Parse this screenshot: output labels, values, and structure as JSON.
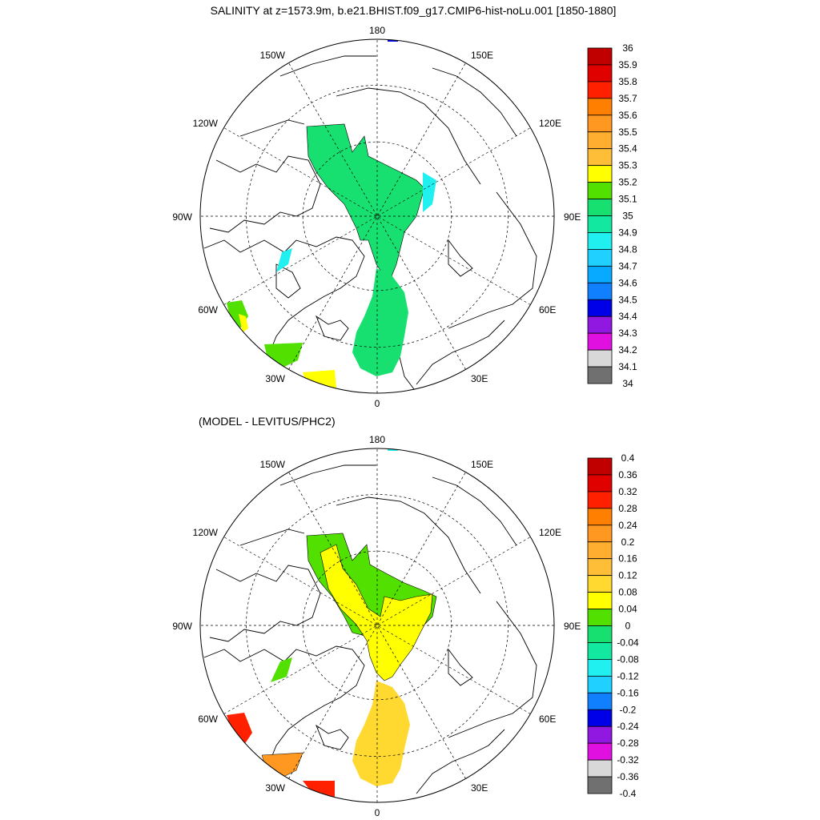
{
  "figure": {
    "title": "SALINITY at z=1573.9m, b.e21.BHIST.f09_g17.CMIP6-hist-noLu.001 [1850-1880]",
    "subtitle": "(MODEL - LEVITUS/PHC2)"
  },
  "longitude_labels": {
    "top": "180",
    "bottom": "0",
    "left": "90W",
    "right": "90E",
    "upper_left": "150W",
    "upper_right": "150E",
    "mid_upper_left": "120W",
    "mid_upper_right": "120E",
    "lower_left": "60W",
    "lower_right": "60E",
    "bottom_left": "30W",
    "bottom_right": "30E"
  },
  "panel1": {
    "colorbar_labels": [
      "36",
      "35.9",
      "35.8",
      "35.7",
      "35.6",
      "35.5",
      "35.4",
      "35.3",
      "35.2",
      "35.1",
      "35",
      "34.9",
      "34.8",
      "34.7",
      "34.6",
      "34.5",
      "34.4",
      "34.3",
      "34.2",
      "34.1",
      "34"
    ],
    "colorbar_colors": [
      "#c00000",
      "#e00000",
      "#ff2000",
      "#ff8000",
      "#ff9820",
      "#ffae30",
      "#ffbe38",
      "#ffff00",
      "#52e000",
      "#18e070",
      "#12e8a0",
      "#20f0f0",
      "#20d0ff",
      "#08aaff",
      "#1080ff",
      "#0000e8",
      "#9018e0",
      "#e010e0",
      "#d8d8d8",
      "#707070"
    ]
  },
  "panel2": {
    "colorbar_labels": [
      "0.4",
      "0.36",
      "0.32",
      "0.28",
      "0.24",
      "0.2",
      "0.16",
      "0.12",
      "0.08",
      "0.04",
      "0",
      "-0.04",
      "-0.08",
      "-0.12",
      "-0.16",
      "-0.2",
      "-0.24",
      "-0.28",
      "-0.32",
      "-0.36",
      "-0.4"
    ],
    "colorbar_colors": [
      "#c00000",
      "#e00000",
      "#ff2000",
      "#ff8000",
      "#ff9820",
      "#ffae30",
      "#ffbe38",
      "#ffd830",
      "#ffff00",
      "#52e000",
      "#18e070",
      "#12e8a0",
      "#20f0f0",
      "#20d0ff",
      "#1080ff",
      "#0000e8",
      "#9018e0",
      "#e010e0",
      "#d8d8d8",
      "#707070"
    ]
  }
}
